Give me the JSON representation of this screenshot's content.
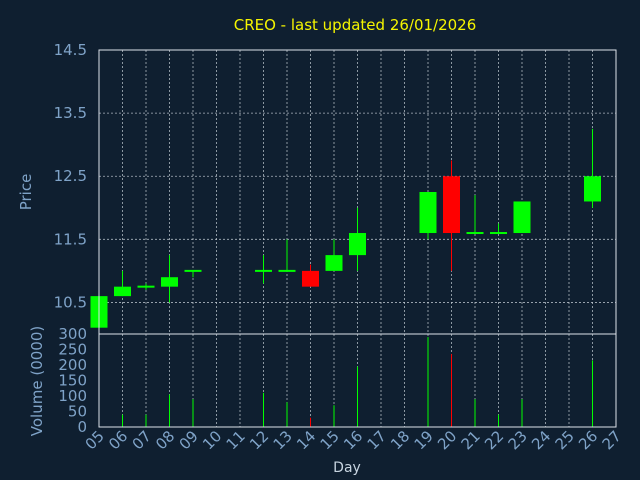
{
  "chart_data": {
    "type": "candlestick",
    "title": "CREO - last updated 26/01/2026",
    "xlabel": "Day",
    "categories": [
      "05",
      "06",
      "07",
      "08",
      "09",
      "10",
      "11",
      "12",
      "13",
      "14",
      "15",
      "16",
      "17",
      "18",
      "19",
      "20",
      "21",
      "22",
      "23",
      "24",
      "25",
      "26",
      "27"
    ],
    "price": {
      "ylabel": "Price",
      "ylim": [
        10.0,
        14.5
      ],
      "yticks": [
        "10.5",
        "11.5",
        "12.5",
        "13.5",
        "14.5"
      ],
      "candles": [
        {
          "day": "05",
          "open": 10.1,
          "high": 10.6,
          "low": 10.1,
          "close": 10.6
        },
        {
          "day": "06",
          "open": 10.6,
          "high": 11.0,
          "low": 10.6,
          "close": 10.75
        },
        {
          "day": "07",
          "open": 10.75,
          "high": 10.8,
          "low": 10.7,
          "close": 10.75
        },
        {
          "day": "08",
          "open": 10.75,
          "high": 11.25,
          "low": 10.5,
          "close": 10.9
        },
        {
          "day": "09",
          "open": 11.0,
          "high": 11.0,
          "low": 10.9,
          "close": 11.0
        },
        {
          "day": "12",
          "open": 11.0,
          "high": 11.25,
          "low": 10.8,
          "close": 11.0
        },
        {
          "day": "13",
          "open": 11.0,
          "high": 11.5,
          "low": 11.0,
          "close": 11.0
        },
        {
          "day": "14",
          "open": 11.0,
          "high": 11.1,
          "low": 10.75,
          "close": 10.75
        },
        {
          "day": "15",
          "open": 11.0,
          "high": 11.5,
          "low": 11.0,
          "close": 11.25
        },
        {
          "day": "16",
          "open": 11.25,
          "high": 12.0,
          "low": 11.0,
          "close": 11.6
        },
        {
          "day": "19",
          "open": 11.6,
          "high": 12.25,
          "low": 11.5,
          "close": 12.25
        },
        {
          "day": "20",
          "open": 12.5,
          "high": 12.75,
          "low": 11.0,
          "close": 11.6
        },
        {
          "day": "21",
          "open": 11.6,
          "high": 12.2,
          "low": 11.6,
          "close": 11.6
        },
        {
          "day": "22",
          "open": 11.6,
          "high": 11.75,
          "low": 11.6,
          "close": 11.6
        },
        {
          "day": "23",
          "open": 11.6,
          "high": 12.1,
          "low": 11.6,
          "close": 12.1
        },
        {
          "day": "26",
          "open": 12.1,
          "high": 13.25,
          "low": 12.0,
          "close": 12.5
        }
      ]
    },
    "volume": {
      "ylabel": "Volume (0000)",
      "ylim": [
        0,
        300
      ],
      "yticks": [
        "0",
        "50",
        "100",
        "150",
        "200",
        "250",
        "300"
      ],
      "bars": [
        {
          "day": "06",
          "value": 40,
          "direction": "up"
        },
        {
          "day": "07",
          "value": 40,
          "direction": "up"
        },
        {
          "day": "08",
          "value": 105,
          "direction": "up"
        },
        {
          "day": "09",
          "value": 90,
          "direction": "up"
        },
        {
          "day": "12",
          "value": 110,
          "direction": "up"
        },
        {
          "day": "13",
          "value": 80,
          "direction": "up"
        },
        {
          "day": "14",
          "value": 30,
          "direction": "down"
        },
        {
          "day": "15",
          "value": 70,
          "direction": "up"
        },
        {
          "day": "16",
          "value": 195,
          "direction": "up"
        },
        {
          "day": "19",
          "value": 290,
          "direction": "up"
        },
        {
          "day": "20",
          "value": 235,
          "direction": "down"
        },
        {
          "day": "21",
          "value": 90,
          "direction": "up"
        },
        {
          "day": "22",
          "value": 40,
          "direction": "up"
        },
        {
          "day": "23",
          "value": 90,
          "direction": "up"
        },
        {
          "day": "26",
          "value": 215,
          "direction": "up"
        }
      ]
    },
    "grid": true,
    "colors": {
      "background": "#0f1f30",
      "title": "#f5f500",
      "axis_text": "#7fa3c8",
      "frame": "#dde3ea",
      "up": "#00ff00",
      "down": "#ff0000"
    }
  }
}
